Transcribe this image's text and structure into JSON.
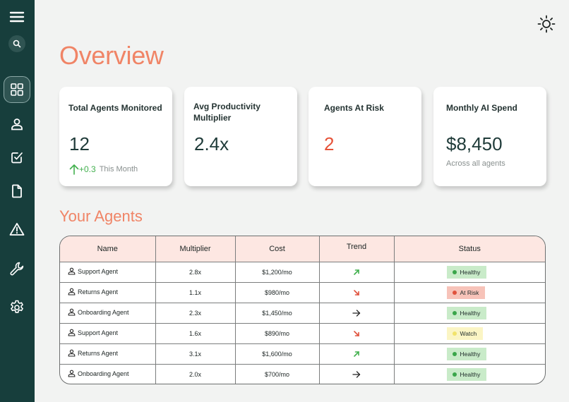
{
  "sidebar": {
    "items": [
      {
        "icon": "menu-icon"
      },
      {
        "icon": "search-icon"
      },
      {
        "icon": "dashboard-icon"
      },
      {
        "icon": "user-icon"
      },
      {
        "icon": "checklist-icon"
      },
      {
        "icon": "document-icon"
      },
      {
        "icon": "warning-icon"
      },
      {
        "icon": "wrench-icon"
      },
      {
        "icon": "gear-icon"
      }
    ],
    "active": "dashboard-icon"
  },
  "header": {
    "title": "Overview",
    "theme_icon": "sun-icon"
  },
  "stats": [
    {
      "title": "Total Agents Monitored",
      "value": "12",
      "delta": "+0.3",
      "sub": "This Month"
    },
    {
      "title": "Avg Productivity Multiplier",
      "value": "2.4x",
      "sub": ""
    },
    {
      "title": "Agents At Risk",
      "value": "2",
      "sub": ""
    },
    {
      "title": "Monthly AI Spend",
      "value": "$8,450",
      "sub": "Across all agents"
    }
  ],
  "agents_section": {
    "title": "Your Agents",
    "columns": [
      "Name",
      "Multiplier",
      "Cost",
      "Trend",
      "Status"
    ],
    "rows": [
      {
        "name": "Support Agent",
        "multiplier": "2.8x",
        "cost": "$1,200/mo",
        "trend": "up",
        "status": "Healthy"
      },
      {
        "name": "Returns Agent",
        "multiplier": "1.1x",
        "cost": "$980/mo",
        "trend": "down",
        "status": "At Risk"
      },
      {
        "name": "Onboarding Agent",
        "multiplier": "2.3x",
        "cost": "$1,450/mo",
        "trend": "flat",
        "status": "Healthy"
      },
      {
        "name": "Support Agent",
        "multiplier": "1.6x",
        "cost": "$890/mo",
        "trend": "down",
        "status": "Watch"
      },
      {
        "name": "Returns Agent",
        "multiplier": "3.1x",
        "cost": "$1,600/mo",
        "trend": "up",
        "status": "Healthy"
      },
      {
        "name": "Onboarding Agent",
        "multiplier": "2.0x",
        "cost": "$700/mo",
        "trend": "flat",
        "status": "Healthy"
      }
    ]
  },
  "colors": {
    "sidebar": "#173e3c",
    "accent": "#f08466",
    "risk_text": "#e65238",
    "positive": "#42b04e",
    "healthy_bg": "#c9ebc9",
    "healthy_dot": "#3aa64a",
    "risk_bg": "#f7c3b9",
    "risk_dot": "#e0513c",
    "watch_bg": "#fbf5c4",
    "watch_dot": "#f1e36a"
  }
}
